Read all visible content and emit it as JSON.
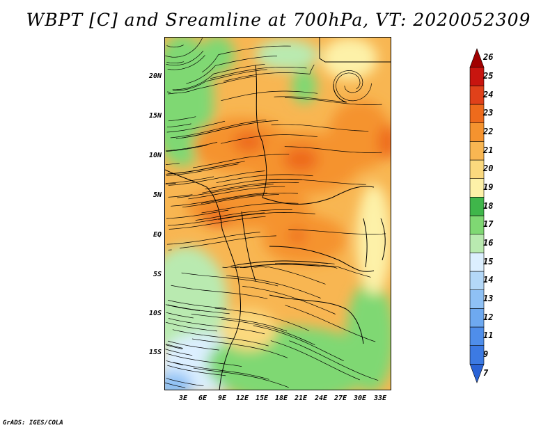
{
  "title": "WBPT [C] and Sreamline at 700hPa, VT: 2020052309",
  "footer": "GrADS: IGES/COLA",
  "lat_labels": [
    "20N",
    "15N",
    "10N",
    "5N",
    "EQ",
    "5S",
    "10S",
    "15S"
  ],
  "lon_labels": [
    "3E",
    "6E",
    "9E",
    "12E",
    "15E",
    "18E",
    "21E",
    "24E",
    "27E",
    "30E",
    "33E"
  ],
  "colorbar": {
    "labels": [
      "7",
      "9",
      "11",
      "12",
      "13",
      "14",
      "15",
      "16",
      "17",
      "18",
      "19",
      "20",
      "21",
      "22",
      "23",
      "24",
      "25",
      "26"
    ],
    "colors": [
      "#2a63d6",
      "#3c7ae3",
      "#4f8eea",
      "#6ea9f0",
      "#8fc1f5",
      "#b4d8f8",
      "#dcefff",
      "#b9eab0",
      "#7fd873",
      "#3fb64a",
      "#fdf1a8",
      "#fbd97e",
      "#f8b652",
      "#f5932f",
      "#ee6b1c",
      "#e0411a",
      "#c8150f",
      "#a00000"
    ]
  },
  "map_data": {
    "variable": "WBPT",
    "units": "C",
    "level": "700hPa",
    "valid_time": "2020052309",
    "lon_range": [
      0,
      35
    ],
    "lat_range": [
      -22,
      24
    ]
  }
}
